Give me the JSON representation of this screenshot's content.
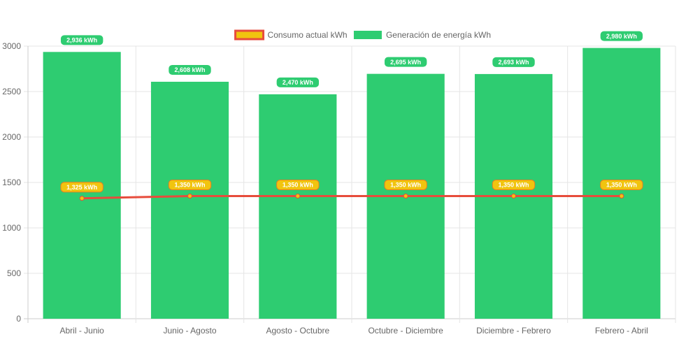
{
  "chart_data": {
    "type": "bar",
    "categories": [
      "Abril - Junio",
      "Junio - Agosto",
      "Agosto - Octubre",
      "Octubre - Diciembre",
      "Diciembre - Febrero",
      "Febrero - Abril"
    ],
    "series": [
      {
        "name": "Consumo actual kWh",
        "type": "line",
        "values": [
          1325,
          1350,
          1350,
          1350,
          1350,
          1350
        ],
        "labels": [
          "1,325 kWh",
          "1,350 kWh",
          "1,350 kWh",
          "1,350 kWh",
          "1,350 kWh",
          "1,350 kWh"
        ],
        "color": "#e74c3c",
        "fill_color": "#f1c40f"
      },
      {
        "name": "Generación de energía kWh",
        "type": "bar",
        "values": [
          2936,
          2608,
          2470,
          2695,
          2693,
          2980
        ],
        "labels": [
          "2,936 kWh",
          "2,608 kWh",
          "2,470 kWh",
          "2,695 kWh",
          "2,693 kWh",
          "2,980 kWh"
        ],
        "color": "#2ecc71"
      }
    ],
    "yticks": [
      0,
      500,
      1000,
      1500,
      2000,
      2500,
      3000
    ],
    "ylim": [
      0,
      3000
    ],
    "grid": true,
    "legend_position": "top-center",
    "title": "",
    "xlabel": "",
    "ylabel": ""
  }
}
